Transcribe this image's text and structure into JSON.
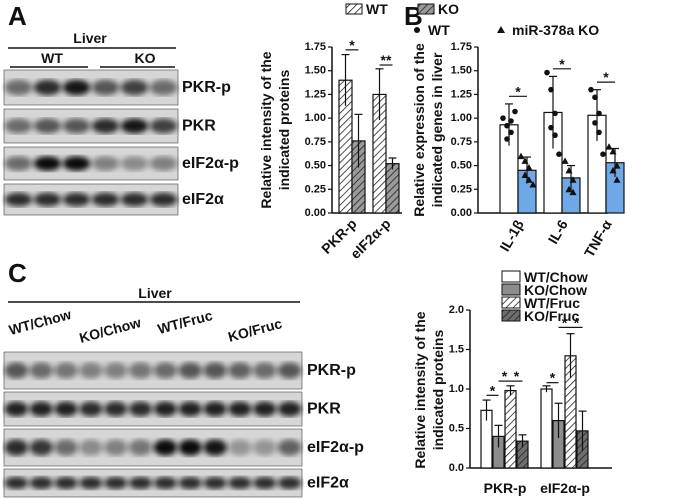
{
  "panel_letters": [
    "A",
    "B",
    "C"
  ],
  "blots": [
    {
      "tissue": "Liver",
      "groups": [
        "WT",
        "KO"
      ],
      "rows": [
        "PKR-p",
        "PKR",
        "eIF2α-p",
        "eIF2α"
      ]
    },
    {
      "tissue": "Liver",
      "groups": [
        "WT/Chow",
        "KO/Chow",
        "WT/Fruc",
        "KO/Fruc"
      ],
      "rows": [
        "PKR-p",
        "PKR",
        "eIF2α-p",
        "eIF2α"
      ]
    }
  ],
  "chart_data": [
    {
      "type": "bar",
      "y_label": [
        "Relative intensity of the",
        "indicated proteins"
      ],
      "categories": [
        "PKR-p",
        "eIF2α-p"
      ],
      "series": [
        {
          "name": "WT",
          "color": "#ffffff",
          "hatch": true,
          "values": [
            1.4,
            1.25
          ],
          "errors": [
            0.27,
            0.27
          ]
        },
        {
          "name": "KO",
          "color": "#9a9a9a",
          "hatch": true,
          "values": [
            0.76,
            0.52
          ],
          "errors": [
            0.28,
            0.06
          ]
        }
      ],
      "ylim": [
        0,
        1.75
      ],
      "yticks": [
        {
          "value": 0,
          "label": "0.00"
        },
        {
          "value": 0.25,
          "label": "0.25"
        },
        {
          "value": 0.5,
          "label": "0.50"
        },
        {
          "value": 0.75,
          "label": "0.75"
        },
        {
          "value": 1,
          "label": "1.00"
        },
        {
          "value": 1.25,
          "label": "1.25"
        },
        {
          "value": 1.5,
          "label": "1.50"
        },
        {
          "value": 1.75,
          "label": "1.75"
        }
      ],
      "annotations": [
        "*",
        "**"
      ]
    },
    {
      "type": "bar",
      "y_label": [
        "Relative expression of the",
        "indicated genes in liver"
      ],
      "categories": [
        "IL-1β",
        "IL-6",
        "TNF-α"
      ],
      "series": [
        {
          "name": "WT",
          "color": "#ffffff",
          "marker": "circle",
          "values": [
            0.93,
            1.06,
            1.03
          ],
          "errors": [
            0.22,
            0.38,
            0.27
          ],
          "points": [
            [
              1.0,
              0.92,
              0.85,
              0.78,
              0.97,
              1.07
            ],
            [
              1.48,
              1.3,
              1.05,
              0.9,
              0.82,
              0.62
            ],
            [
              1.3,
              1.22,
              1.05,
              0.95,
              0.85,
              0.62
            ]
          ]
        },
        {
          "name": "miR-378a KO",
          "color": "#6fa8e6",
          "marker": "triangle",
          "values": [
            0.45,
            0.37,
            0.53
          ],
          "errors": [
            0.14,
            0.13,
            0.15
          ],
          "points": [
            [
              0.6,
              0.55,
              0.48,
              0.4,
              0.35,
              0.3
            ],
            [
              0.55,
              0.45,
              0.35,
              0.25,
              0.22
            ],
            [
              0.7,
              0.65,
              0.5,
              0.45,
              0.35
            ]
          ]
        }
      ],
      "ylim": [
        0,
        1.75
      ],
      "yticks": [
        {
          "value": 0,
          "label": "0.00"
        },
        {
          "value": 0.25,
          "label": "0.25"
        },
        {
          "value": 0.5,
          "label": "0.50"
        },
        {
          "value": 0.75,
          "label": "0.75"
        },
        {
          "value": 1,
          "label": "1.00"
        },
        {
          "value": 1.25,
          "label": "1.25"
        },
        {
          "value": 1.5,
          "label": "1.50"
        },
        {
          "value": 1.75,
          "label": "1.75"
        }
      ],
      "annotations": [
        "*",
        "*",
        "*"
      ]
    },
    {
      "type": "bar",
      "y_label": [
        "Relative intensity of the",
        "indicated proteins"
      ],
      "categories": [
        "PKR-p",
        "eIF2α-p"
      ],
      "series": [
        {
          "name": "WT/Chow",
          "color": "#ffffff",
          "values": [
            0.73,
            1.0
          ],
          "errors": [
            0.13,
            0.04
          ]
        },
        {
          "name": "KO/Chow",
          "color": "#8c8c8c",
          "values": [
            0.4,
            0.6
          ],
          "errors": [
            0.14,
            0.22
          ]
        },
        {
          "name": "WT/Fruc",
          "color": "#ffffff",
          "hatch": true,
          "values": [
            0.98,
            1.42
          ],
          "errors": [
            0.06,
            0.28
          ]
        },
        {
          "name": "KO/Fruc",
          "color": "#6e6e6e",
          "hatch": true,
          "values": [
            0.34,
            0.47
          ],
          "errors": [
            0.08,
            0.25
          ]
        }
      ],
      "ylim": [
        0,
        2
      ],
      "yticks": [
        {
          "value": 0,
          "label": "0.0"
        },
        {
          "value": 0.5,
          "label": "0.5"
        },
        {
          "value": 1,
          "label": "1.0"
        },
        {
          "value": 1.5,
          "label": "1.5"
        },
        {
          "value": 2,
          "label": "2.0"
        }
      ],
      "annotations": [
        "*",
        "*",
        "*",
        "*",
        "*",
        "*"
      ]
    }
  ]
}
